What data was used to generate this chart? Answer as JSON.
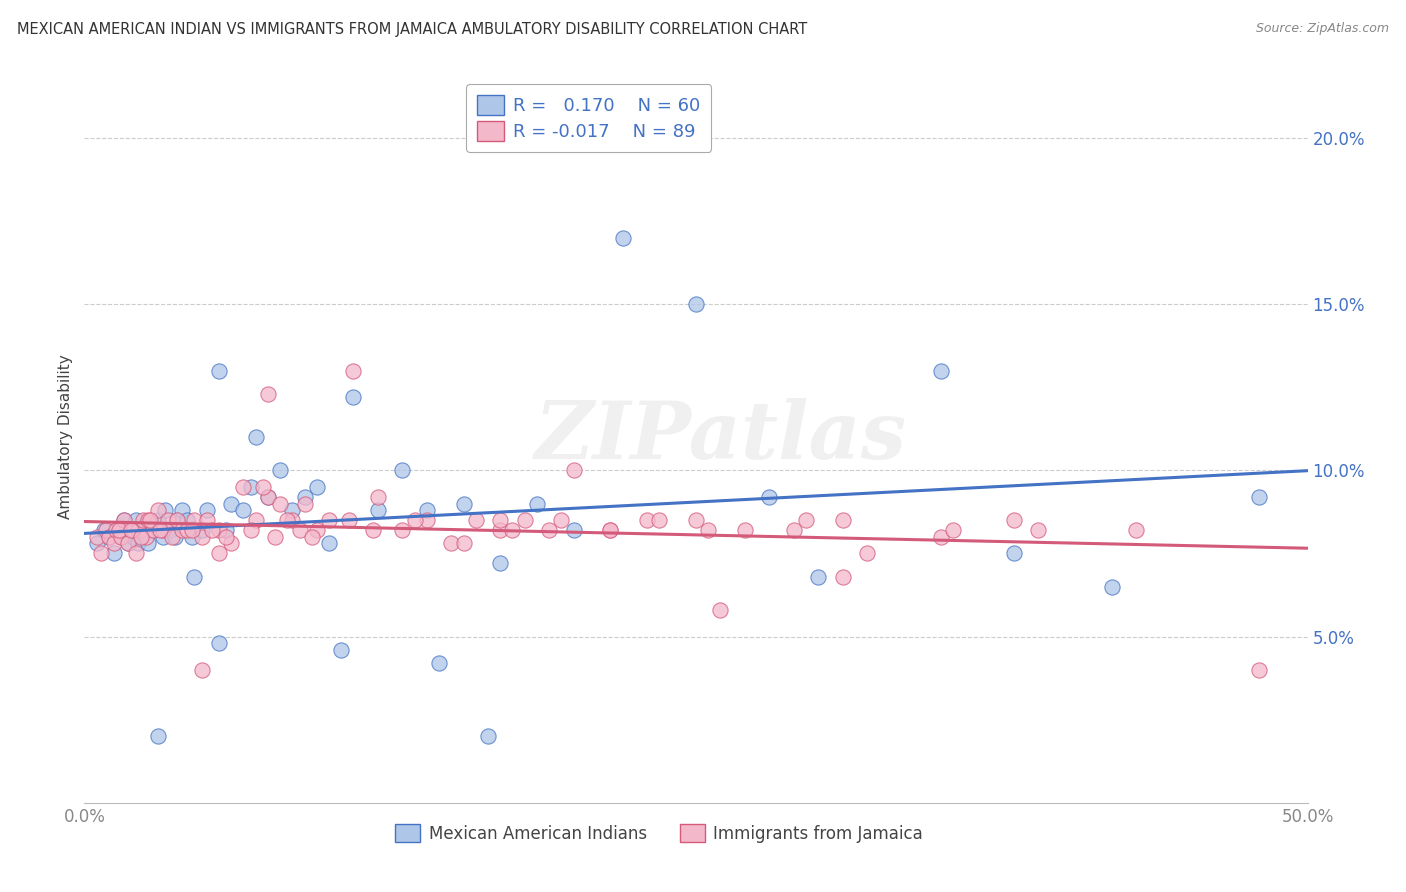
{
  "title": "MEXICAN AMERICAN INDIAN VS IMMIGRANTS FROM JAMAICA AMBULATORY DISABILITY CORRELATION CHART",
  "source": "Source: ZipAtlas.com",
  "ylabel": "Ambulatory Disability",
  "watermark": "ZIPatlas",
  "xlim": [
    0.0,
    0.5
  ],
  "ylim": [
    0.0,
    0.22
  ],
  "yticks_right": [
    0.05,
    0.1,
    0.15,
    0.2
  ],
  "yticklabels_right": [
    "5.0%",
    "10.0%",
    "15.0%",
    "20.0%"
  ],
  "color_blue": "#aec6e8",
  "color_pink": "#f4b8cb",
  "line_color_blue": "#4472c4",
  "line_color_pink": "#d45a7a",
  "background": "#ffffff",
  "grid_color": "#cccccc",
  "blue_x": [
    0.005,
    0.008,
    0.01,
    0.012,
    0.013,
    0.015,
    0.016,
    0.018,
    0.02,
    0.021,
    0.022,
    0.024,
    0.025,
    0.026,
    0.028,
    0.03,
    0.032,
    0.033,
    0.035,
    0.037,
    0.038,
    0.04,
    0.042,
    0.044,
    0.048,
    0.05,
    0.055,
    0.058,
    0.06,
    0.065,
    0.068,
    0.07,
    0.075,
    0.08,
    0.085,
    0.09,
    0.095,
    0.1,
    0.11,
    0.12,
    0.13,
    0.14,
    0.155,
    0.17,
    0.185,
    0.2,
    0.22,
    0.25,
    0.28,
    0.3,
    0.35,
    0.38,
    0.42,
    0.48,
    0.03,
    0.045,
    0.055,
    0.105,
    0.145,
    0.165
  ],
  "blue_y": [
    0.078,
    0.082,
    0.08,
    0.075,
    0.082,
    0.08,
    0.085,
    0.078,
    0.08,
    0.085,
    0.078,
    0.083,
    0.082,
    0.078,
    0.082,
    0.085,
    0.08,
    0.088,
    0.082,
    0.08,
    0.085,
    0.088,
    0.085,
    0.08,
    0.082,
    0.088,
    0.13,
    0.082,
    0.09,
    0.088,
    0.095,
    0.11,
    0.092,
    0.1,
    0.088,
    0.092,
    0.095,
    0.078,
    0.122,
    0.088,
    0.1,
    0.088,
    0.09,
    0.072,
    0.09,
    0.082,
    0.17,
    0.15,
    0.092,
    0.068,
    0.13,
    0.075,
    0.065,
    0.092,
    0.02,
    0.068,
    0.048,
    0.046,
    0.042,
    0.02
  ],
  "pink_x": [
    0.005,
    0.007,
    0.009,
    0.01,
    0.012,
    0.013,
    0.015,
    0.016,
    0.018,
    0.02,
    0.021,
    0.022,
    0.024,
    0.025,
    0.026,
    0.028,
    0.03,
    0.032,
    0.034,
    0.036,
    0.038,
    0.04,
    0.042,
    0.045,
    0.048,
    0.05,
    0.055,
    0.06,
    0.065,
    0.07,
    0.075,
    0.08,
    0.085,
    0.09,
    0.095,
    0.1,
    0.11,
    0.12,
    0.13,
    0.14,
    0.15,
    0.16,
    0.17,
    0.18,
    0.19,
    0.2,
    0.215,
    0.23,
    0.25,
    0.27,
    0.29,
    0.31,
    0.35,
    0.38,
    0.43,
    0.48,
    0.014,
    0.019,
    0.023,
    0.027,
    0.031,
    0.044,
    0.052,
    0.058,
    0.068,
    0.073,
    0.078,
    0.083,
    0.088,
    0.093,
    0.108,
    0.118,
    0.135,
    0.155,
    0.175,
    0.195,
    0.215,
    0.235,
    0.255,
    0.295,
    0.32,
    0.355,
    0.39,
    0.31,
    0.26,
    0.17,
    0.075,
    0.055,
    0.048
  ],
  "pink_y": [
    0.08,
    0.075,
    0.082,
    0.08,
    0.078,
    0.082,
    0.08,
    0.085,
    0.078,
    0.082,
    0.075,
    0.082,
    0.085,
    0.08,
    0.085,
    0.082,
    0.088,
    0.082,
    0.085,
    0.08,
    0.085,
    0.082,
    0.082,
    0.085,
    0.08,
    0.085,
    0.082,
    0.078,
    0.095,
    0.085,
    0.092,
    0.09,
    0.085,
    0.09,
    0.082,
    0.085,
    0.13,
    0.092,
    0.082,
    0.085,
    0.078,
    0.085,
    0.082,
    0.085,
    0.082,
    0.1,
    0.082,
    0.085,
    0.085,
    0.082,
    0.082,
    0.085,
    0.08,
    0.085,
    0.082,
    0.04,
    0.082,
    0.082,
    0.08,
    0.085,
    0.082,
    0.082,
    0.082,
    0.08,
    0.082,
    0.095,
    0.08,
    0.085,
    0.082,
    0.08,
    0.085,
    0.082,
    0.085,
    0.078,
    0.082,
    0.085,
    0.082,
    0.085,
    0.082,
    0.085,
    0.075,
    0.082,
    0.082,
    0.068,
    0.058,
    0.085,
    0.123,
    0.075,
    0.04
  ]
}
